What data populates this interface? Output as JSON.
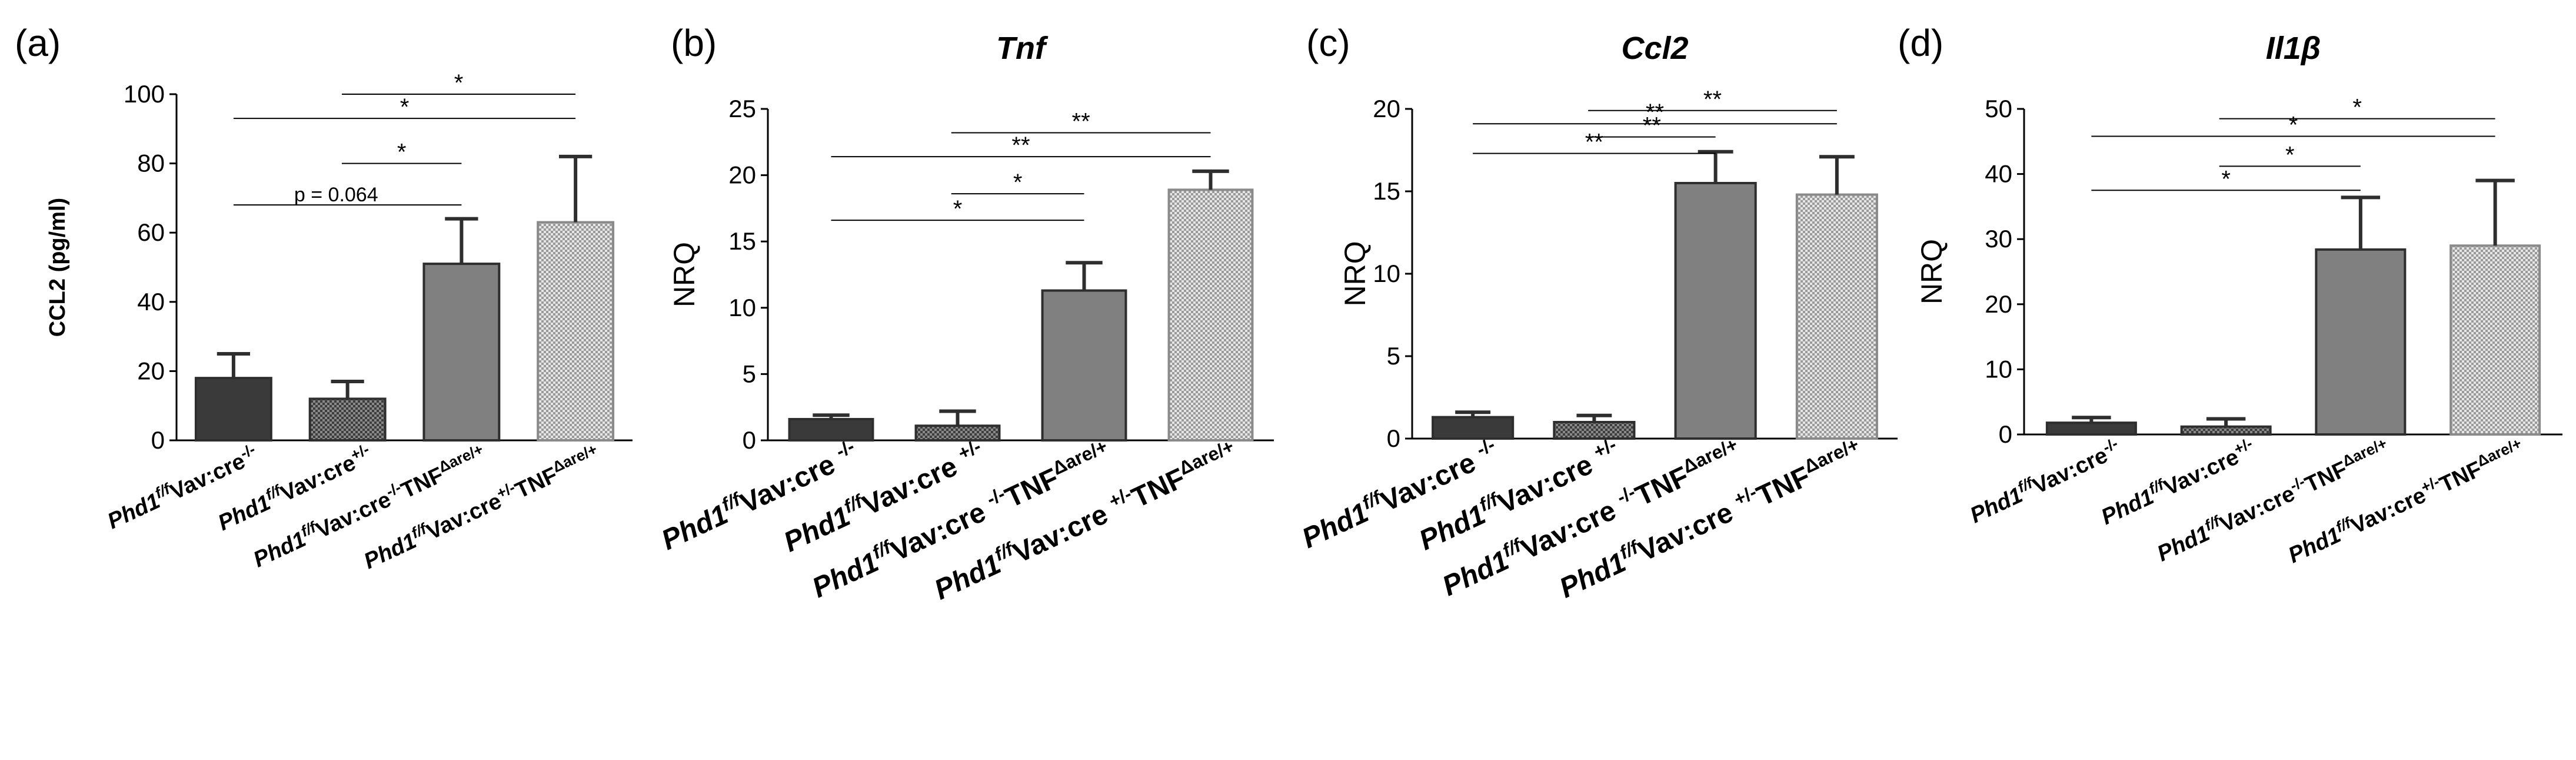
{
  "colors": {
    "dark": "#3a3a3a",
    "gray": "#808080",
    "axis": "#000000"
  },
  "chart_data": [
    {
      "type": "bar",
      "panel": "(a)",
      "title": "",
      "ylabel": "CCL2 (pg/ml)",
      "ylim": [
        0,
        100
      ],
      "yticks": [
        "0",
        "20",
        "40",
        "60",
        "80",
        "100"
      ],
      "categories": [
        {
          "base": "Phd1",
          "sup": "f/f",
          "mid": "Vav:cre",
          "sup2": "-/-",
          "tnf": "",
          "tnfsup": ""
        },
        {
          "base": "Phd1",
          "sup": "f/f",
          "mid": "Vav:cre",
          "sup2": "+/-",
          "tnf": "",
          "tnfsup": ""
        },
        {
          "base": "Phd1",
          "sup": "f/f",
          "mid": "Vav:cre",
          "sup2": "-/-",
          "tnf": "TNF",
          "tnfsup": "Δare/+"
        },
        {
          "base": "Phd1",
          "sup": "f/f",
          "mid": "Vav:cre",
          "sup2": "+/-",
          "tnf": "TNF",
          "tnfsup": "Δare/+"
        }
      ],
      "values": [
        18,
        12,
        51,
        63
      ],
      "errors": [
        7,
        5,
        13,
        19
      ],
      "bar_styles": [
        "dark",
        "darkcheck",
        "gray",
        "lightcheck"
      ],
      "significance": [
        {
          "from": 1,
          "to": 3,
          "label": "*"
        },
        {
          "from": 0,
          "to": 3,
          "label": "*"
        },
        {
          "from": 1,
          "to": 2,
          "label": "*"
        },
        {
          "from": 0,
          "to": 2,
          "label": "p = 0.064"
        }
      ],
      "sig_levels": [
        100,
        93,
        80,
        68
      ]
    },
    {
      "type": "bar",
      "panel": "(b)",
      "title": "Tnf",
      "ylabel": "NRQ",
      "ylim": [
        0,
        25
      ],
      "yticks": [
        "0",
        "5",
        "10",
        "15",
        "20",
        "25"
      ],
      "categories": [
        {
          "base": "Phd1",
          "sup": "f/f",
          "mid": "Vav:cre ",
          "sup2": "-/-",
          "tnf": "",
          "tnfsup": ""
        },
        {
          "base": "Phd1",
          "sup": "f/f",
          "mid": "Vav:cre ",
          "sup2": "+/-",
          "tnf": "",
          "tnfsup": ""
        },
        {
          "base": "Phd1",
          "sup": "f/f",
          "mid": "Vav:cre ",
          "sup2": "-/-",
          "tnf": "TNF",
          "tnfsup": "Δare/+"
        },
        {
          "base": "Phd1",
          "sup": "f/f",
          "mid": "Vav:cre ",
          "sup2": "+/-",
          "tnf": "TNF",
          "tnfsup": "Δare/+"
        }
      ],
      "values": [
        1.6,
        1.1,
        11.3,
        18.9
      ],
      "errors": [
        0.3,
        1.1,
        2.1,
        1.4
      ],
      "bar_styles": [
        "dark",
        "darkcheck",
        "gray",
        "lightcheck"
      ],
      "significance": [
        {
          "from": 1,
          "to": 3,
          "label": "**"
        },
        {
          "from": 0,
          "to": 3,
          "label": "**"
        },
        {
          "from": 1,
          "to": 2,
          "label": "*"
        },
        {
          "from": 0,
          "to": 2,
          "label": "*"
        }
      ],
      "sig_levels": [
        23.2,
        21.4,
        18.6,
        16.6
      ]
    },
    {
      "type": "bar",
      "panel": "(c)",
      "title": "Ccl2",
      "ylabel": "NRQ",
      "ylim": [
        0,
        20
      ],
      "yticks": [
        "0",
        "5",
        "10",
        "15",
        "20"
      ],
      "categories": [
        {
          "base": "Phd1",
          "sup": "f/f",
          "mid": "Vav:cre ",
          "sup2": "-/-",
          "tnf": "",
          "tnfsup": ""
        },
        {
          "base": "Phd1",
          "sup": "f/f",
          "mid": "Vav:cre ",
          "sup2": "+/-",
          "tnf": "",
          "tnfsup": ""
        },
        {
          "base": "Phd1",
          "sup": "f/f",
          "mid": "Vav:cre ",
          "sup2": "-/-",
          "tnf": "TNF",
          "tnfsup": "Δare/+"
        },
        {
          "base": "Phd1",
          "sup": "f/f",
          "mid": "Vav:cre ",
          "sup2": "+/-",
          "tnf": "TNF",
          "tnfsup": "Δare/+"
        }
      ],
      "values": [
        1.3,
        1.0,
        15.5,
        14.8
      ],
      "errors": [
        0.3,
        0.4,
        1.9,
        2.3
      ],
      "bar_styles": [
        "dark",
        "darkcheck",
        "gray",
        "lightcheck"
      ],
      "significance": [
        {
          "from": 1,
          "to": 3,
          "label": "**"
        },
        {
          "from": 0,
          "to": 3,
          "label": "**"
        },
        {
          "from": 1,
          "to": 2,
          "label": "**"
        },
        {
          "from": 0,
          "to": 2,
          "label": "**"
        }
      ],
      "sig_levels": [
        19.9,
        19.1,
        18.3,
        17.3
      ]
    },
    {
      "type": "bar",
      "panel": "(d)",
      "title": "Il1β",
      "ylabel": "NRQ",
      "ylim": [
        0,
        50
      ],
      "yticks": [
        "0",
        "10",
        "20",
        "30",
        "40",
        "50"
      ],
      "categories": [
        {
          "base": "Phd1",
          "sup": "f/f",
          "mid": "Vav:cre",
          "sup2": "-/-",
          "tnf": "",
          "tnfsup": ""
        },
        {
          "base": "Phd1",
          "sup": "f/f",
          "mid": "Vav:cre",
          "sup2": "+/-",
          "tnf": "",
          "tnfsup": ""
        },
        {
          "base": "Phd1",
          "sup": "f/f",
          "mid": "Vav:cre",
          "sup2": "-/-",
          "tnf": "TNF",
          "tnfsup": "Δare/+"
        },
        {
          "base": "Phd1",
          "sup": "f/f",
          "mid": "Vav:cre",
          "sup2": "+/-",
          "tnf": "TNF",
          "tnfsup": "Δare/+"
        }
      ],
      "values": [
        1.8,
        1.2,
        28.4,
        29.0
      ],
      "errors": [
        0.8,
        1.2,
        8.0,
        10.0
      ],
      "bar_styles": [
        "dark",
        "darkcheck",
        "gray",
        "lightcheck"
      ],
      "significance": [
        {
          "from": 1,
          "to": 3,
          "label": "*"
        },
        {
          "from": 0,
          "to": 3,
          "label": "*"
        },
        {
          "from": 1,
          "to": 2,
          "label": "*"
        },
        {
          "from": 0,
          "to": 2,
          "label": "*"
        }
      ],
      "sig_levels": [
        48.5,
        45.8,
        41.2,
        37.5
      ]
    }
  ]
}
